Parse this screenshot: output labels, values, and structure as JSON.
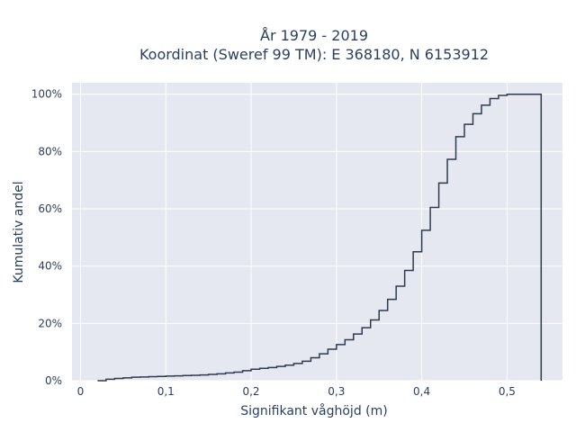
{
  "chart_data": {
    "type": "line",
    "line_shape": "step",
    "title_line1": "År 1979 - 2019",
    "title_line2": "Koordinat (Sweref 99 TM): E 368180, N 6153912",
    "xlabel": "Signifikant våghöjd (m)",
    "ylabel": "Kumulativ andel",
    "xlim": [
      -0.01,
      0.565
    ],
    "ylim": [
      0,
      1.04
    ],
    "x_ticks": [
      0,
      0.1,
      0.2,
      0.3,
      0.4,
      0.5
    ],
    "x_tick_labels": [
      "0",
      "0,1",
      "0,2",
      "0,3",
      "0,4",
      "0,5"
    ],
    "y_ticks": [
      0,
      0.2,
      0.4,
      0.6,
      0.8,
      1.0
    ],
    "y_tick_labels": [
      "0%",
      "20%",
      "40%",
      "60%",
      "80%",
      "100%"
    ],
    "grid": true,
    "plot_bgcolor": "#e5e8f1",
    "line_color": "#2f3b4c",
    "series": [
      {
        "x": [
          0.02,
          0.03,
          0.04,
          0.05,
          0.06,
          0.07,
          0.08,
          0.09,
          0.1,
          0.11,
          0.12,
          0.13,
          0.14,
          0.15,
          0.16,
          0.17,
          0.18,
          0.19,
          0.2,
          0.21,
          0.22,
          0.23,
          0.24,
          0.25,
          0.26,
          0.27,
          0.28,
          0.29,
          0.3,
          0.31,
          0.32,
          0.33,
          0.34,
          0.35,
          0.36,
          0.37,
          0.38,
          0.39,
          0.4,
          0.41,
          0.42,
          0.43,
          0.44,
          0.45,
          0.46,
          0.47,
          0.48,
          0.49,
          0.5,
          0.51,
          0.52,
          0.53,
          0.54,
          0.54
        ],
        "y": [
          0.0,
          0.005,
          0.008,
          0.01,
          0.012,
          0.013,
          0.014,
          0.015,
          0.016,
          0.017,
          0.018,
          0.019,
          0.02,
          0.022,
          0.024,
          0.027,
          0.03,
          0.035,
          0.04,
          0.043,
          0.046,
          0.05,
          0.054,
          0.06,
          0.068,
          0.08,
          0.094,
          0.11,
          0.126,
          0.143,
          0.163,
          0.185,
          0.212,
          0.245,
          0.284,
          0.33,
          0.385,
          0.45,
          0.525,
          0.605,
          0.69,
          0.773,
          0.852,
          0.895,
          0.932,
          0.962,
          0.985,
          0.996,
          1.0,
          1.0,
          1.0,
          1.0,
          1.0,
          0.0
        ]
      }
    ]
  }
}
